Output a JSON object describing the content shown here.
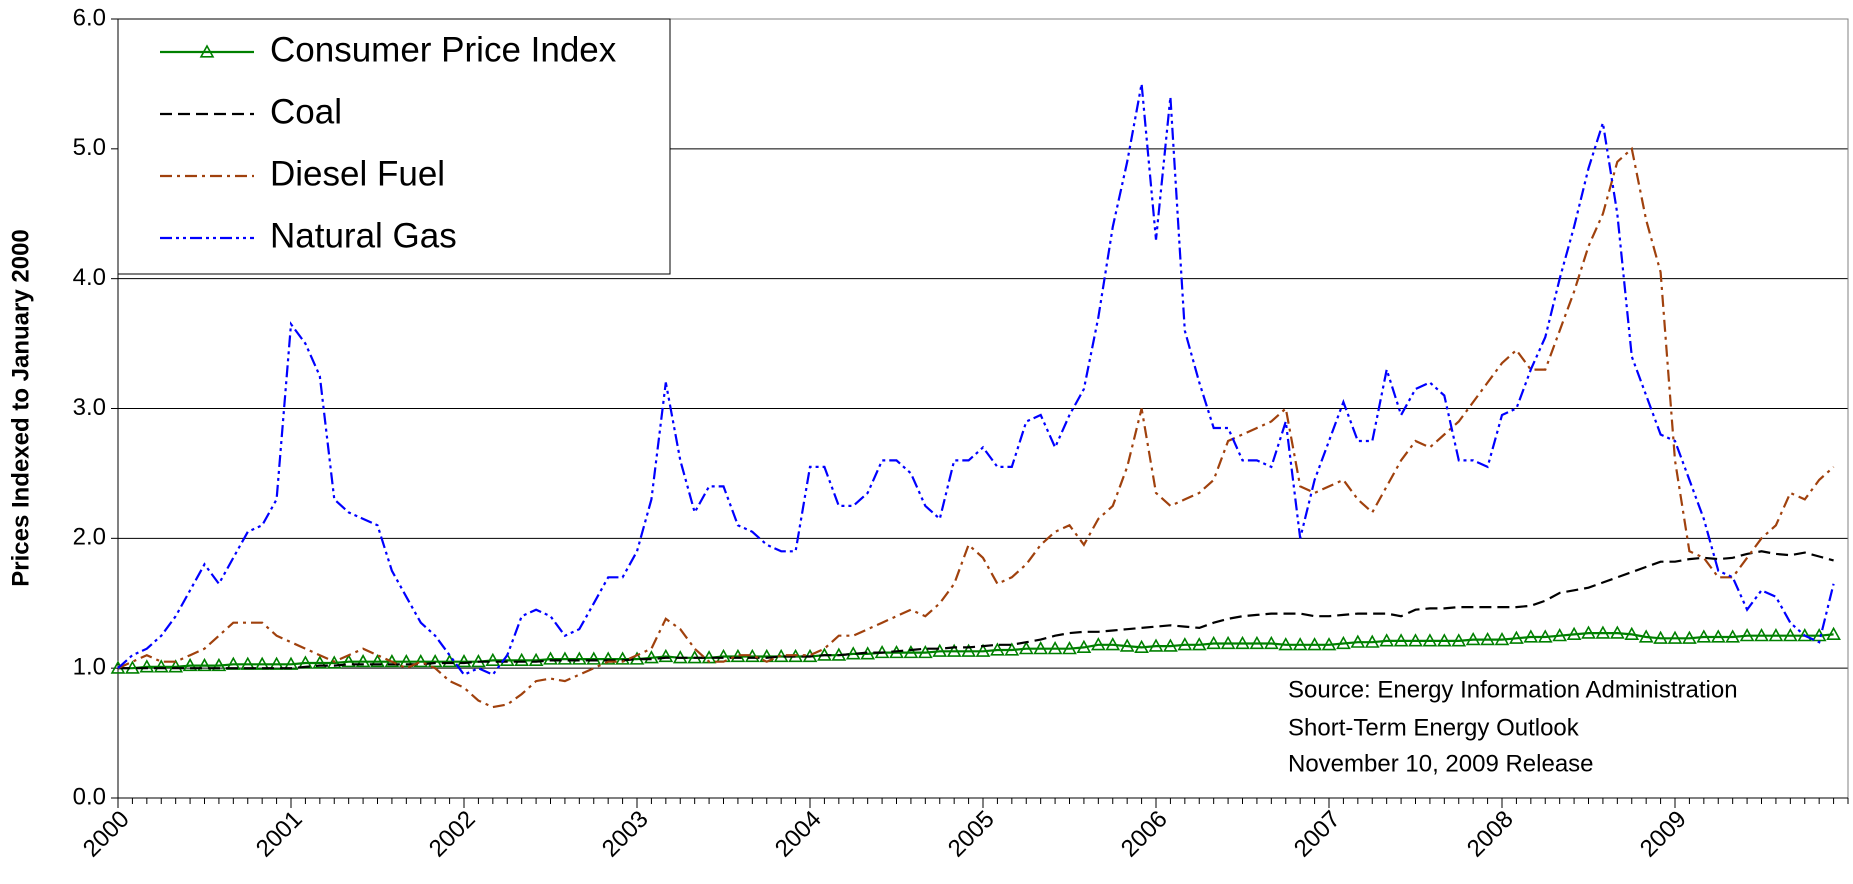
{
  "chart_data": {
    "type": "line",
    "y_label": "Prices Indexed to January 2000",
    "annotation": [
      "Source:  Energy Information Administration",
      "Short-Term Energy Outlook",
      "November 10, 2009 Release"
    ],
    "categories": [
      "2000",
      null,
      null,
      null,
      null,
      null,
      null,
      null,
      null,
      null,
      null,
      null,
      "2001",
      null,
      null,
      null,
      null,
      null,
      null,
      null,
      null,
      null,
      null,
      null,
      "2002",
      null,
      null,
      null,
      null,
      null,
      null,
      null,
      null,
      null,
      null,
      null,
      "2003",
      null,
      null,
      null,
      null,
      null,
      null,
      null,
      null,
      null,
      null,
      null,
      "2004",
      null,
      null,
      null,
      null,
      null,
      null,
      null,
      null,
      null,
      null,
      null,
      "2005",
      null,
      null,
      null,
      null,
      null,
      null,
      null,
      null,
      null,
      null,
      null,
      "2006",
      null,
      null,
      null,
      null,
      null,
      null,
      null,
      null,
      null,
      null,
      null,
      "2007",
      null,
      null,
      null,
      null,
      null,
      null,
      null,
      null,
      null,
      null,
      null,
      "2008",
      null,
      null,
      null,
      null,
      null,
      null,
      null,
      null,
      null,
      null,
      null,
      "2009",
      null,
      null,
      null,
      null,
      null,
      null,
      null,
      null,
      null,
      null,
      null
    ],
    "ylim": [
      0,
      6
    ],
    "yticks": [
      {
        "value": 0,
        "label": "0.0"
      },
      {
        "value": 1,
        "label": "1.0"
      },
      {
        "value": 2,
        "label": "2.0"
      },
      {
        "value": 3,
        "label": "3.0"
      },
      {
        "value": 4,
        "label": "4.0"
      },
      {
        "value": 5,
        "label": "5.0"
      },
      {
        "value": 6,
        "label": "6.0"
      }
    ],
    "grid": true,
    "legend": "upper left",
    "series": [
      {
        "name": "Consumer Price Index",
        "color": "#008000",
        "dash": "solid",
        "marker": "triangle",
        "values": [
          1.0,
          1.0,
          1.01,
          1.01,
          1.01,
          1.02,
          1.02,
          1.02,
          1.03,
          1.03,
          1.03,
          1.03,
          1.03,
          1.04,
          1.04,
          1.04,
          1.05,
          1.05,
          1.05,
          1.05,
          1.05,
          1.05,
          1.05,
          1.05,
          1.05,
          1.05,
          1.06,
          1.06,
          1.06,
          1.06,
          1.07,
          1.07,
          1.07,
          1.07,
          1.07,
          1.07,
          1.07,
          1.08,
          1.09,
          1.08,
          1.08,
          1.08,
          1.09,
          1.09,
          1.09,
          1.09,
          1.09,
          1.09,
          1.09,
          1.1,
          1.1,
          1.11,
          1.11,
          1.12,
          1.12,
          1.12,
          1.12,
          1.13,
          1.13,
          1.13,
          1.13,
          1.14,
          1.14,
          1.15,
          1.15,
          1.15,
          1.15,
          1.16,
          1.18,
          1.18,
          1.17,
          1.16,
          1.17,
          1.17,
          1.18,
          1.18,
          1.19,
          1.19,
          1.19,
          1.19,
          1.19,
          1.18,
          1.18,
          1.18,
          1.18,
          1.19,
          1.2,
          1.2,
          1.21,
          1.21,
          1.21,
          1.21,
          1.21,
          1.21,
          1.22,
          1.22,
          1.22,
          1.23,
          1.24,
          1.24,
          1.25,
          1.26,
          1.27,
          1.27,
          1.27,
          1.26,
          1.24,
          1.23,
          1.23,
          1.23,
          1.24,
          1.24,
          1.24,
          1.25,
          1.25,
          1.25,
          1.25,
          1.25,
          1.25,
          1.26
        ]
      },
      {
        "name": "Coal",
        "color": "#000000",
        "dash": "dashed",
        "marker": "none",
        "values": [
          1.0,
          1.0,
          1.0,
          1.0,
          1.0,
          1.0,
          1.0,
          1.0,
          1.0,
          1.0,
          1.0,
          1.0,
          1.0,
          1.01,
          1.02,
          1.02,
          1.03,
          1.03,
          1.03,
          1.03,
          1.03,
          1.03,
          1.04,
          1.04,
          1.04,
          1.05,
          1.05,
          1.05,
          1.05,
          1.05,
          1.06,
          1.06,
          1.06,
          1.06,
          1.06,
          1.06,
          1.07,
          1.07,
          1.08,
          1.08,
          1.08,
          1.08,
          1.08,
          1.08,
          1.08,
          1.08,
          1.09,
          1.09,
          1.09,
          1.1,
          1.1,
          1.11,
          1.12,
          1.12,
          1.13,
          1.14,
          1.15,
          1.15,
          1.16,
          1.16,
          1.17,
          1.18,
          1.18,
          1.2,
          1.22,
          1.25,
          1.27,
          1.28,
          1.28,
          1.29,
          1.3,
          1.31,
          1.32,
          1.33,
          1.32,
          1.31,
          1.35,
          1.38,
          1.4,
          1.41,
          1.42,
          1.42,
          1.42,
          1.4,
          1.4,
          1.41,
          1.42,
          1.42,
          1.42,
          1.4,
          1.45,
          1.46,
          1.46,
          1.47,
          1.47,
          1.47,
          1.47,
          1.47,
          1.48,
          1.52,
          1.58,
          1.6,
          1.62,
          1.66,
          1.7,
          1.74,
          1.78,
          1.82,
          1.82,
          1.84,
          1.85,
          1.84,
          1.85,
          1.88,
          1.9,
          1.88,
          1.87,
          1.89,
          1.86,
          1.83
        ]
      },
      {
        "name": "Diesel Fuel",
        "color": "#a0410d",
        "dash": "dash-dot",
        "marker": "none",
        "values": [
          1.0,
          1.05,
          1.1,
          1.05,
          1.05,
          1.1,
          1.15,
          1.25,
          1.35,
          1.35,
          1.35,
          1.25,
          1.2,
          1.15,
          1.1,
          1.05,
          1.1,
          1.15,
          1.1,
          1.05,
          1.0,
          1.05,
          1.0,
          0.9,
          0.85,
          0.75,
          0.7,
          0.72,
          0.8,
          0.9,
          0.92,
          0.9,
          0.95,
          1.0,
          1.05,
          1.05,
          1.1,
          1.15,
          1.38,
          1.3,
          1.15,
          1.05,
          1.05,
          1.1,
          1.1,
          1.05,
          1.1,
          1.1,
          1.1,
          1.15,
          1.25,
          1.25,
          1.3,
          1.35,
          1.4,
          1.45,
          1.4,
          1.5,
          1.65,
          1.95,
          1.85,
          1.65,
          1.7,
          1.8,
          1.95,
          2.05,
          2.1,
          1.95,
          2.15,
          2.25,
          2.55,
          3.0,
          2.35,
          2.25,
          2.3,
          2.35,
          2.45,
          2.75,
          2.8,
          2.85,
          2.9,
          3.0,
          2.4,
          2.35,
          2.4,
          2.45,
          2.3,
          2.2,
          2.4,
          2.6,
          2.75,
          2.7,
          2.8,
          2.9,
          3.05,
          3.2,
          3.35,
          3.45,
          3.3,
          3.3,
          3.6,
          3.9,
          4.25,
          4.5,
          4.9,
          5.0,
          4.45,
          4.05,
          2.6,
          1.9,
          1.85,
          1.7,
          1.7,
          1.85,
          2.0,
          2.1,
          2.35,
          2.3,
          2.45,
          2.55
        ]
      },
      {
        "name": "Natural Gas",
        "color": "#0000ff",
        "dash": "dash-dot-dot",
        "marker": "none",
        "values": [
          1.0,
          1.1,
          1.15,
          1.25,
          1.4,
          1.6,
          1.8,
          1.65,
          1.85,
          2.05,
          2.1,
          2.3,
          3.65,
          3.5,
          3.25,
          2.3,
          2.2,
          2.15,
          2.1,
          1.75,
          1.55,
          1.35,
          1.25,
          1.1,
          0.95,
          1.0,
          0.95,
          1.1,
          1.4,
          1.45,
          1.4,
          1.25,
          1.3,
          1.5,
          1.7,
          1.7,
          1.9,
          2.3,
          3.2,
          2.6,
          2.2,
          2.4,
          2.4,
          2.1,
          2.05,
          1.95,
          1.9,
          1.9,
          2.55,
          2.55,
          2.25,
          2.25,
          2.35,
          2.6,
          2.6,
          2.5,
          2.25,
          2.15,
          2.6,
          2.6,
          2.7,
          2.55,
          2.55,
          2.9,
          2.95,
          2.7,
          2.95,
          3.15,
          3.7,
          4.4,
          4.9,
          5.5,
          4.3,
          5.4,
          3.6,
          3.2,
          2.85,
          2.85,
          2.6,
          2.6,
          2.55,
          2.9,
          2.0,
          2.45,
          2.75,
          3.05,
          2.75,
          2.75,
          3.3,
          2.95,
          3.15,
          3.2,
          3.1,
          2.6,
          2.6,
          2.55,
          2.95,
          3.0,
          3.3,
          3.55,
          4.0,
          4.4,
          4.85,
          5.2,
          4.5,
          3.4,
          3.1,
          2.8,
          2.75,
          2.45,
          2.15,
          1.75,
          1.7,
          1.45,
          1.6,
          1.55,
          1.35,
          1.25,
          1.2,
          1.65
        ]
      }
    ]
  }
}
